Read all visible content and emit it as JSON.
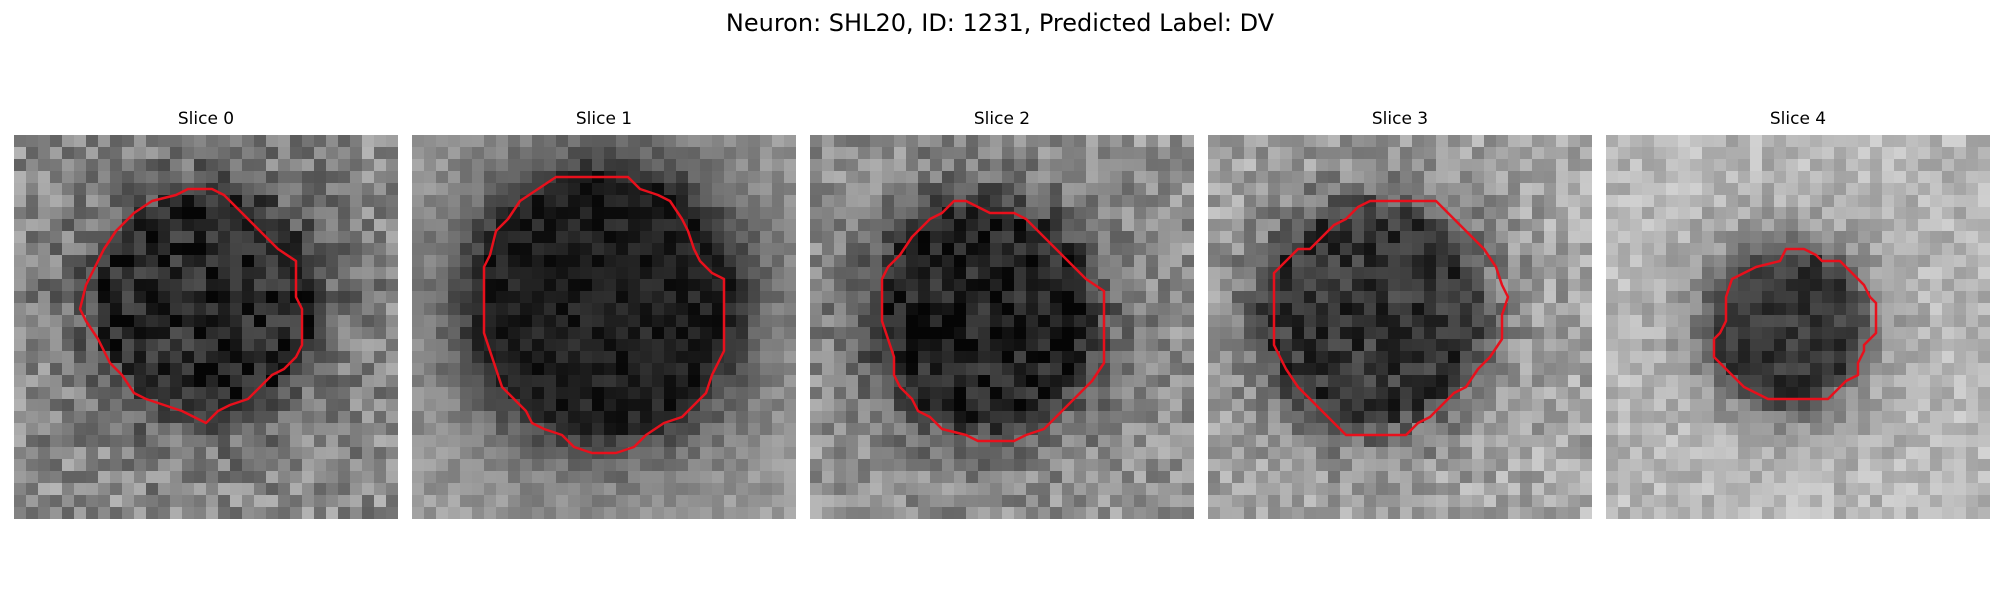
{
  "title": "Neuron: SHL20, ID: 1231, Predicted Label: DV",
  "contour_color": "#e8101c",
  "image_grid": [
    32,
    32
  ],
  "slices": [
    {
      "label": "Slice 0",
      "blob": {
        "cx": 16,
        "cy": 14,
        "r": 8.5,
        "darkness": 0.4
      },
      "texture": {
        "base": 0.55,
        "noise": 0.34,
        "seed": 11
      },
      "contour": [
        [
          11.5,
          5.5
        ],
        [
          13.5,
          5
        ],
        [
          14.5,
          4.5
        ],
        [
          16.5,
          4.5
        ],
        [
          17.5,
          5
        ],
        [
          19,
          6.5
        ],
        [
          20,
          7.5
        ],
        [
          21,
          8.5
        ],
        [
          22,
          9.5
        ],
        [
          23.5,
          10.5
        ],
        [
          23.5,
          13.5
        ],
        [
          24,
          14.5
        ],
        [
          24,
          17.5
        ],
        [
          23.5,
          18.5
        ],
        [
          22.5,
          19.5
        ],
        [
          21.5,
          20
        ],
        [
          20.5,
          21
        ],
        [
          19.5,
          22
        ],
        [
          18,
          22.5
        ],
        [
          17,
          23
        ],
        [
          16,
          24
        ],
        [
          15,
          23.5
        ],
        [
          14,
          23
        ],
        [
          12.5,
          22.5
        ],
        [
          11,
          22
        ],
        [
          10,
          21.5
        ],
        [
          9,
          20
        ],
        [
          8,
          19
        ],
        [
          7.5,
          18
        ],
        [
          7,
          17
        ],
        [
          6,
          15.5
        ],
        [
          5.5,
          14.5
        ],
        [
          6,
          12.5
        ],
        [
          6.5,
          11.5
        ],
        [
          7.5,
          9.5
        ],
        [
          8.5,
          8
        ],
        [
          10,
          6.5
        ]
      ]
    },
    {
      "label": "Slice 1",
      "blob": {
        "cx": 16,
        "cy": 14,
        "r": 10.5,
        "darkness": 0.5
      },
      "texture": {
        "base": 0.62,
        "noise": 0.18,
        "seed": 23
      },
      "contour": [
        [
          9,
          5.5
        ],
        [
          10.5,
          4.5
        ],
        [
          12,
          3.5
        ],
        [
          15,
          3.5
        ],
        [
          18,
          3.5
        ],
        [
          19,
          4.5
        ],
        [
          20.5,
          5
        ],
        [
          21.5,
          5.5
        ],
        [
          22.5,
          7
        ],
        [
          23,
          8
        ],
        [
          23.5,
          9.5
        ],
        [
          24,
          10.5
        ],
        [
          25,
          11.5
        ],
        [
          26,
          12
        ],
        [
          26,
          15
        ],
        [
          26,
          18
        ],
        [
          25.5,
          19
        ],
        [
          25,
          20
        ],
        [
          24.5,
          21.5
        ],
        [
          23.5,
          22.5
        ],
        [
          22.5,
          23.5
        ],
        [
          21,
          24
        ],
        [
          19.5,
          25
        ],
        [
          18.5,
          26
        ],
        [
          17,
          26.5
        ],
        [
          15,
          26.5
        ],
        [
          13.5,
          26
        ],
        [
          12.5,
          25
        ],
        [
          11,
          24.5
        ],
        [
          10,
          24
        ],
        [
          9.5,
          23
        ],
        [
          8.5,
          22
        ],
        [
          7.5,
          21
        ],
        [
          7,
          19.5
        ],
        [
          6.5,
          18
        ],
        [
          6,
          16.5
        ],
        [
          6,
          13.5
        ],
        [
          6,
          11
        ],
        [
          6.5,
          10
        ],
        [
          7,
          8
        ],
        [
          8,
          7
        ]
      ]
    },
    {
      "label": "Slice 2",
      "blob": {
        "cx": 14.5,
        "cy": 15,
        "r": 8.5,
        "darkness": 0.45
      },
      "texture": {
        "base": 0.58,
        "noise": 0.3,
        "seed": 37
      },
      "contour": [
        [
          10,
          7
        ],
        [
          11,
          6.5
        ],
        [
          12,
          5.5
        ],
        [
          13,
          5.5
        ],
        [
          14,
          6
        ],
        [
          15,
          6.5
        ],
        [
          17,
          6.5
        ],
        [
          18,
          7
        ],
        [
          19,
          8
        ],
        [
          20,
          9
        ],
        [
          21,
          10
        ],
        [
          22,
          11
        ],
        [
          23,
          12
        ],
        [
          24.5,
          13
        ],
        [
          24.5,
          16
        ],
        [
          24.5,
          19
        ],
        [
          23.5,
          20.5
        ],
        [
          22.5,
          21.5
        ],
        [
          21.5,
          22.5
        ],
        [
          20.5,
          23.5
        ],
        [
          19.5,
          24.5
        ],
        [
          18,
          25
        ],
        [
          17,
          25.5
        ],
        [
          14,
          25.5
        ],
        [
          13,
          25
        ],
        [
          11,
          24.5
        ],
        [
          10,
          23.5
        ],
        [
          9,
          23
        ],
        [
          8.5,
          22
        ],
        [
          7.5,
          21
        ],
        [
          7,
          20
        ],
        [
          7,
          18.5
        ],
        [
          6.5,
          17
        ],
        [
          6,
          15.5
        ],
        [
          6,
          12
        ],
        [
          6.5,
          11
        ],
        [
          7.5,
          10
        ],
        [
          8.5,
          8.5
        ]
      ]
    },
    {
      "label": "Slice 3",
      "blob": {
        "cx": 13.5,
        "cy": 15,
        "r": 8.5,
        "darkness": 0.45
      },
      "texture": {
        "base": 0.66,
        "noise": 0.3,
        "seed": 53
      },
      "contour": [
        [
          8.5,
          9.5
        ],
        [
          9.5,
          8.5
        ],
        [
          10.5,
          7.5
        ],
        [
          11.5,
          7
        ],
        [
          12.5,
          6
        ],
        [
          13.5,
          5.5
        ],
        [
          16.5,
          5.5
        ],
        [
          19,
          5.5
        ],
        [
          20,
          6.5
        ],
        [
          21,
          7.5
        ],
        [
          22,
          8.5
        ],
        [
          23,
          9.5
        ],
        [
          24,
          11
        ],
        [
          24.5,
          12.5
        ],
        [
          25,
          13.5
        ],
        [
          24.5,
          15
        ],
        [
          24.5,
          17
        ],
        [
          23.5,
          18.5
        ],
        [
          22.5,
          19.5
        ],
        [
          21.5,
          21
        ],
        [
          20.5,
          21.5
        ],
        [
          19.5,
          22.5
        ],
        [
          18.5,
          23.5
        ],
        [
          17.5,
          24
        ],
        [
          16.5,
          25
        ],
        [
          14,
          25
        ],
        [
          11.5,
          25
        ],
        [
          10.5,
          24
        ],
        [
          9.5,
          23
        ],
        [
          8.5,
          22
        ],
        [
          7.5,
          21
        ],
        [
          6.5,
          19.5
        ],
        [
          5.5,
          17.5
        ],
        [
          5.5,
          14.5
        ],
        [
          5.5,
          11.5
        ],
        [
          6.5,
          10.5
        ],
        [
          7.5,
          9.5
        ]
      ]
    },
    {
      "label": "Slice 4",
      "blob": {
        "cx": 15,
        "cy": 16,
        "r": 6,
        "darkness": 0.5
      },
      "texture": {
        "base": 0.72,
        "noise": 0.22,
        "seed": 71
      },
      "contour": [
        [
          10.5,
          12
        ],
        [
          11.5,
          11.5
        ],
        [
          12.5,
          11
        ],
        [
          14.5,
          10.5
        ],
        [
          15,
          9.5
        ],
        [
          16.5,
          9.5
        ],
        [
          17.5,
          10
        ],
        [
          18,
          10.5
        ],
        [
          19.5,
          10.5
        ],
        [
          20.5,
          11.5
        ],
        [
          21.5,
          12.5
        ],
        [
          22,
          13.5
        ],
        [
          22.5,
          14
        ],
        [
          22.5,
          16.5
        ],
        [
          21.5,
          17.5
        ],
        [
          21.5,
          18
        ],
        [
          21,
          19
        ],
        [
          21,
          20
        ],
        [
          20,
          20.5
        ],
        [
          19,
          21.5
        ],
        [
          18.5,
          22
        ],
        [
          16,
          22
        ],
        [
          13.5,
          22
        ],
        [
          12.5,
          21.5
        ],
        [
          11.5,
          21
        ],
        [
          10.5,
          20
        ],
        [
          10,
          19.5
        ],
        [
          9.5,
          19
        ],
        [
          9,
          18.5
        ],
        [
          9,
          17
        ],
        [
          9.5,
          16.5
        ],
        [
          10,
          15.5
        ],
        [
          10,
          13.5
        ]
      ]
    }
  ]
}
